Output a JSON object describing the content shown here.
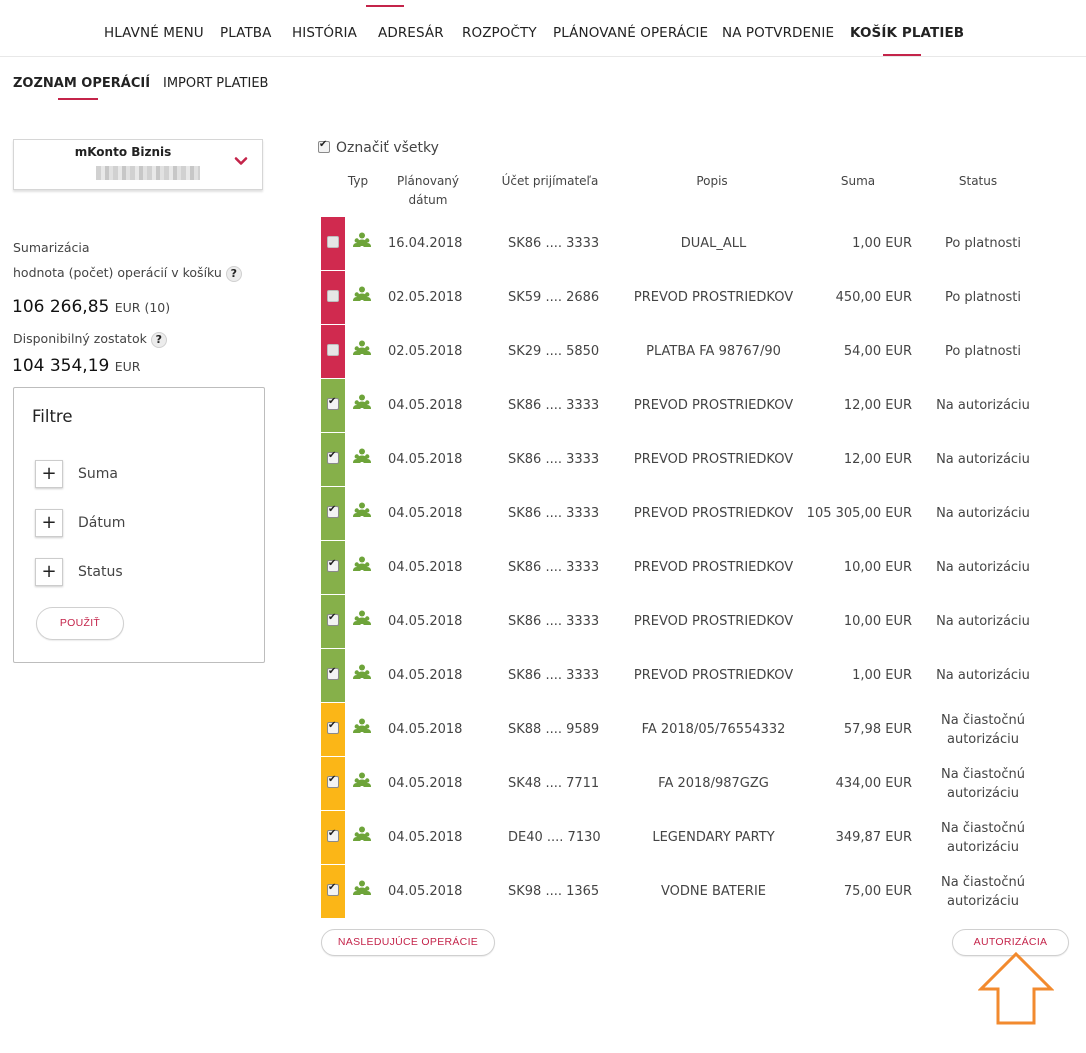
{
  "topnav": {
    "items": [
      {
        "label": "HLAVNÉ MENU"
      },
      {
        "label": "PLATBA"
      },
      {
        "label": "HISTÓRIA"
      },
      {
        "label": "ADRESÁR"
      },
      {
        "label": "ROZPOČTY"
      },
      {
        "label": "PLÁNOVANÉ OPERÁCIE"
      },
      {
        "label": "NA POTVRDENIE"
      },
      {
        "label": "KOŠÍK PLATIEB"
      }
    ],
    "active": "KOŠÍK PLATIEB"
  },
  "subnav": {
    "items": [
      {
        "label": "ZOZNAM OPERÁCIÍ"
      },
      {
        "label": "IMPORT PLATIEB"
      }
    ],
    "active": "ZOZNAM OPERÁCIÍ"
  },
  "account": {
    "name": "mKonto Biznis",
    "icon": "chevron-down-icon"
  },
  "summary": {
    "heading": "Sumarizácia",
    "basket_label": "hodnota (počet) operácií v košíku",
    "basket_amount": "106 266,85",
    "basket_suffix": "EUR (10)",
    "balance_label": "Disponibilný zostatok",
    "balance_amount": "104 354,19",
    "balance_currency": "EUR",
    "help_glyph": "?"
  },
  "filters": {
    "title": "Filtre",
    "items": [
      {
        "label": "Suma"
      },
      {
        "label": "Dátum"
      },
      {
        "label": "Status"
      }
    ],
    "plus_glyph": "+",
    "apply_label": "POUŽIŤ"
  },
  "table": {
    "select_all_label": "Označiť všetky",
    "headers": {
      "typ": "Typ",
      "date": "Plánovaný dátum",
      "account": "Účet prijímateľa",
      "description": "Popis",
      "amount": "Suma",
      "status": "Status"
    },
    "colors": {
      "red": "#d02a4f",
      "green": "#86b04a",
      "yellow": "#fbb617",
      "type_icon": "#6ea43a"
    },
    "rows": [
      {
        "color": "red",
        "checked": false,
        "date": "16.04.2018",
        "account": "SK86 .... 3333",
        "description": "DUAL_ALL",
        "amount": "1,00 EUR",
        "status": "Po platnosti"
      },
      {
        "color": "red",
        "checked": false,
        "date": "02.05.2018",
        "account": "SK59 .... 2686",
        "description": "PREVOD PROSTRIEDKOV",
        "amount": "450,00 EUR",
        "status": "Po platnosti"
      },
      {
        "color": "red",
        "checked": false,
        "date": "02.05.2018",
        "account": "SK29 .... 5850",
        "description": "PLATBA FA 98767/90",
        "amount": "54,00 EUR",
        "status": "Po platnosti"
      },
      {
        "color": "green",
        "checked": true,
        "date": "04.05.2018",
        "account": "SK86 .... 3333",
        "description": "PREVOD PROSTRIEDKOV",
        "amount": "12,00 EUR",
        "status": "Na autorizáciu"
      },
      {
        "color": "green",
        "checked": true,
        "date": "04.05.2018",
        "account": "SK86 .... 3333",
        "description": "PREVOD PROSTRIEDKOV",
        "amount": "12,00 EUR",
        "status": "Na autorizáciu"
      },
      {
        "color": "green",
        "checked": true,
        "date": "04.05.2018",
        "account": "SK86 .... 3333",
        "description": "PREVOD PROSTRIEDKOV",
        "amount": "105 305,00 EUR",
        "status": "Na autorizáciu"
      },
      {
        "color": "green",
        "checked": true,
        "date": "04.05.2018",
        "account": "SK86 .... 3333",
        "description": "PREVOD PROSTRIEDKOV",
        "amount": "10,00 EUR",
        "status": "Na autorizáciu"
      },
      {
        "color": "green",
        "checked": true,
        "date": "04.05.2018",
        "account": "SK86 .... 3333",
        "description": "PREVOD PROSTRIEDKOV",
        "amount": "10,00 EUR",
        "status": "Na autorizáciu"
      },
      {
        "color": "green",
        "checked": true,
        "date": "04.05.2018",
        "account": "SK86 .... 3333",
        "description": "PREVOD PROSTRIEDKOV",
        "amount": "1,00 EUR",
        "status": "Na autorizáciu"
      },
      {
        "color": "yellow",
        "checked": true,
        "date": "04.05.2018",
        "account": "SK88 .... 9589",
        "description": "FA 2018/05/76554332",
        "amount": "57,98 EUR",
        "status": "Na čiastočnú autorizáciu"
      },
      {
        "color": "yellow",
        "checked": true,
        "date": "04.05.2018",
        "account": "SK48 .... 7711",
        "description": "FA 2018/987GZG",
        "amount": "434,00 EUR",
        "status": "Na čiastočnú autorizáciu"
      },
      {
        "color": "yellow",
        "checked": true,
        "date": "04.05.2018",
        "account": "DE40 .... 7130",
        "description": "LEGENDARY PARTY",
        "amount": "349,87 EUR",
        "status": "Na čiastočnú autorizáciu"
      },
      {
        "color": "yellow",
        "checked": true,
        "date": "04.05.2018",
        "account": "SK98 .... 1365",
        "description": "VODNE BATERIE",
        "amount": "75,00 EUR",
        "status": "Na čiastočnú autorizáciu"
      }
    ]
  },
  "actions": {
    "next_label": "NASLEDUJÚCE OPERÁCIE",
    "authorize_label": "AUTORIZÁCIA"
  },
  "annotation": {
    "arrow_color": "#f28a2e",
    "icon": "up-arrow-icon"
  },
  "accent_color": "#c4244a"
}
